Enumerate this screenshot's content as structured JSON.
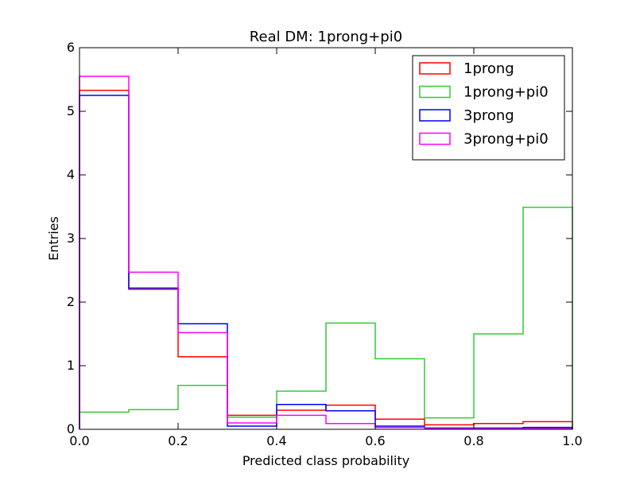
{
  "chart_data": {
    "type": "histogram-step",
    "title": "Real DM: 1prong+pi0",
    "xlabel": "Predicted class probability",
    "ylabel": "Entries",
    "xlim": [
      0.0,
      1.0
    ],
    "ylim": [
      0,
      6
    ],
    "xticks": [
      "0.0",
      "0.2",
      "0.4",
      "0.6",
      "0.8",
      "1.0"
    ],
    "yticks": [
      "0",
      "1",
      "2",
      "3",
      "4",
      "5",
      "6"
    ],
    "bin_edges": [
      0.0,
      0.1,
      0.2,
      0.3,
      0.4,
      0.5,
      0.6,
      0.7,
      0.8,
      0.9,
      1.0
    ],
    "legend_position": "top-right",
    "grid": false,
    "series": [
      {
        "name": "1prong",
        "color": "#ff0000",
        "values": [
          5.33,
          2.2,
          1.14,
          0.22,
          0.3,
          0.38,
          0.16,
          0.07,
          0.09,
          0.12
        ]
      },
      {
        "name": "1prong+pi0",
        "color": "#33cc33",
        "values": [
          0.27,
          0.31,
          0.69,
          0.19,
          0.6,
          1.67,
          1.11,
          0.18,
          1.5,
          3.49
        ]
      },
      {
        "name": "3prong",
        "color": "#0000ff",
        "values": [
          5.25,
          2.22,
          1.66,
          0.05,
          0.39,
          0.29,
          0.05,
          0.02,
          0.02,
          0.03
        ]
      },
      {
        "name": "3prong+pi0",
        "color": "#ff00ff",
        "values": [
          5.55,
          2.47,
          1.52,
          0.1,
          0.22,
          0.09,
          0.03,
          0.01,
          0.01,
          0.01
        ]
      }
    ]
  }
}
